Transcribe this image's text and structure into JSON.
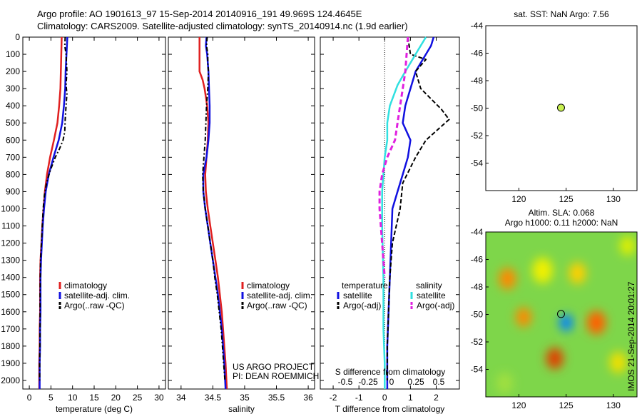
{
  "header": {
    "line1": "Argo profile: AO 1901613_97 15-Sep-2014 20140916_191 49.969S 124.4645E",
    "line2": "Climatology: CARS2009. Satellite-adjusted climatology: synTS_20140914.nc (1.9d earlier)"
  },
  "side_stamp": "IMOS 21-Sep-2014 20:01:27",
  "colors": {
    "clim": "#e02020",
    "sat": "#1010e0",
    "argo": "#000000",
    "sat_s": "#30e0e0",
    "argo_s": "#e020e0",
    "map_dot": "#c8f050"
  },
  "chart_data": [
    {
      "id": "temperature",
      "type": "line",
      "xlabel": "temperature (deg C)",
      "x_ticks": [
        0,
        5,
        10,
        15,
        20,
        25,
        30
      ],
      "xlim": [
        -1.5,
        31.5
      ],
      "ylim": [
        0,
        2050
      ],
      "y_ticks": [
        0,
        100,
        200,
        300,
        400,
        500,
        600,
        700,
        800,
        900,
        1000,
        1100,
        1200,
        1300,
        1400,
        1500,
        1600,
        1700,
        1800,
        1900,
        2000
      ],
      "legend": [
        "climatology",
        "satellite-adj. clim.",
        "Argo(..raw -QC)"
      ],
      "series": [
        {
          "name": "climatology",
          "color": "clim",
          "dash": "",
          "width": 2.5,
          "points": [
            [
              7.5,
              0
            ],
            [
              7.4,
              100
            ],
            [
              7.3,
              200
            ],
            [
              7.2,
              300
            ],
            [
              6.9,
              400
            ],
            [
              6.5,
              500
            ],
            [
              5.7,
              600
            ],
            [
              4.8,
              700
            ],
            [
              4.1,
              800
            ],
            [
              3.6,
              900
            ],
            [
              3.3,
              1000
            ],
            [
              3.0,
              1100
            ],
            [
              2.8,
              1200
            ],
            [
              2.6,
              1300
            ],
            [
              2.5,
              1400
            ],
            [
              2.5,
              1500
            ],
            [
              2.5,
              1600
            ],
            [
              2.4,
              1700
            ],
            [
              2.4,
              1800
            ],
            [
              2.3,
              1900
            ],
            [
              2.3,
              2050
            ]
          ]
        },
        {
          "name": "satellite-adj. clim.",
          "color": "sat",
          "dash": "",
          "width": 2.5,
          "points": [
            [
              8.8,
              0
            ],
            [
              8.6,
              100
            ],
            [
              8.4,
              200
            ],
            [
              8.3,
              300
            ],
            [
              8.0,
              400
            ],
            [
              7.6,
              500
            ],
            [
              6.8,
              600
            ],
            [
              5.6,
              700
            ],
            [
              4.5,
              800
            ],
            [
              3.8,
              900
            ],
            [
              3.4,
              1000
            ],
            [
              3.1,
              1100
            ],
            [
              2.9,
              1200
            ],
            [
              2.7,
              1300
            ],
            [
              2.6,
              1400
            ],
            [
              2.6,
              1500
            ],
            [
              2.6,
              1600
            ],
            [
              2.5,
              1700
            ],
            [
              2.5,
              1800
            ],
            [
              2.4,
              1900
            ],
            [
              2.4,
              2050
            ]
          ]
        },
        {
          "name": "Argo(..raw -QC)",
          "color": "argo",
          "dash": "6,3,2,3",
          "width": 2,
          "points": [
            [
              8.3,
              0
            ],
            [
              8.2,
              50
            ],
            [
              8.5,
              100
            ],
            [
              8.7,
              200
            ],
            [
              8.5,
              280
            ],
            [
              8.7,
              330
            ],
            [
              8.5,
              400
            ],
            [
              8.3,
              480
            ],
            [
              8.2,
              550
            ],
            [
              7.8,
              600
            ],
            [
              7.0,
              650
            ],
            [
              6.0,
              700
            ],
            [
              4.8,
              780
            ],
            [
              4.0,
              850
            ],
            [
              3.5,
              920
            ],
            [
              3.2,
              1000
            ],
            [
              3.0,
              1100
            ],
            [
              2.8,
              1200
            ],
            [
              2.6,
              1300
            ],
            [
              2.55,
              1400
            ],
            [
              2.5,
              1500
            ],
            [
              2.5,
              1600
            ],
            [
              2.5,
              1700
            ],
            [
              2.45,
              1800
            ],
            [
              2.4,
              1900
            ],
            [
              2.4,
              2000
            ]
          ]
        }
      ]
    },
    {
      "id": "salinity",
      "type": "line",
      "xlabel": "salinity",
      "x_ticks": [
        34,
        34.5,
        35,
        35.5,
        36
      ],
      "xlim": [
        33.8,
        36.1
      ],
      "ylim": [
        0,
        2050
      ],
      "legend": [
        "climatology",
        "satellite-adj. clim.",
        "Argo(..raw -QC)"
      ],
      "credit": [
        "US ARGO PROJECT",
        "PI: DEAN ROEMMICH"
      ],
      "series": [
        {
          "name": "climatology",
          "color": "clim",
          "dash": "",
          "width": 2.5,
          "points": [
            [
              34.29,
              0
            ],
            [
              34.29,
              50
            ],
            [
              34.29,
              150
            ],
            [
              34.29,
              200
            ],
            [
              34.34,
              250
            ],
            [
              34.37,
              300
            ],
            [
              34.41,
              400
            ],
            [
              34.43,
              500
            ],
            [
              34.42,
              600
            ],
            [
              34.4,
              700
            ],
            [
              34.38,
              800
            ],
            [
              34.39,
              900
            ],
            [
              34.42,
              1000
            ],
            [
              34.46,
              1100
            ],
            [
              34.5,
              1200
            ],
            [
              34.54,
              1300
            ],
            [
              34.58,
              1400
            ],
            [
              34.61,
              1500
            ],
            [
              34.64,
              1600
            ],
            [
              34.66,
              1700
            ],
            [
              34.68,
              1800
            ],
            [
              34.7,
              1900
            ],
            [
              34.72,
              2050
            ]
          ]
        },
        {
          "name": "satellite-adj. clim.",
          "color": "sat",
          "dash": "",
          "width": 2.5,
          "points": [
            [
              34.4,
              0
            ],
            [
              34.39,
              50
            ],
            [
              34.41,
              100
            ],
            [
              34.43,
              200
            ],
            [
              34.44,
              300
            ],
            [
              34.45,
              400
            ],
            [
              34.45,
              500
            ],
            [
              34.43,
              600
            ],
            [
              34.4,
              700
            ],
            [
              34.35,
              800
            ],
            [
              34.35,
              900
            ],
            [
              34.38,
              1000
            ],
            [
              34.42,
              1100
            ],
            [
              34.46,
              1200
            ],
            [
              34.5,
              1300
            ],
            [
              34.54,
              1400
            ],
            [
              34.58,
              1500
            ],
            [
              34.61,
              1600
            ],
            [
              34.64,
              1700
            ],
            [
              34.66,
              1800
            ],
            [
              34.68,
              1900
            ],
            [
              34.7,
              2050
            ]
          ]
        },
        {
          "name": "Argo(..raw -QC)",
          "color": "argo",
          "dash": "6,3,2,3",
          "width": 2,
          "points": [
            [
              34.41,
              0
            ],
            [
              34.4,
              50
            ],
            [
              34.42,
              100
            ],
            [
              34.42,
              150
            ],
            [
              34.43,
              200
            ],
            [
              34.42,
              300
            ],
            [
              34.4,
              400
            ],
            [
              34.39,
              500
            ],
            [
              34.38,
              600
            ],
            [
              34.36,
              700
            ],
            [
              34.34,
              800
            ],
            [
              34.35,
              900
            ],
            [
              34.38,
              1000
            ],
            [
              34.42,
              1100
            ],
            [
              34.46,
              1200
            ],
            [
              34.5,
              1300
            ],
            [
              34.53,
              1400
            ],
            [
              34.57,
              1500
            ],
            [
              34.6,
              1600
            ],
            [
              34.63,
              1700
            ],
            [
              34.65,
              1800
            ],
            [
              34.67,
              1900
            ],
            [
              34.69,
              2000
            ]
          ]
        }
      ]
    },
    {
      "id": "difference",
      "type": "line",
      "xlabel": "T difference from climatology",
      "xlabel_top": "S difference from climatology",
      "x_ticks": [
        -2,
        -1,
        0,
        1,
        2
      ],
      "s_ticks": [
        "-0.5",
        "-0.25",
        "0",
        "0.25",
        "0.5"
      ],
      "xlim": [
        -2.5,
        2.9
      ],
      "ylim": [
        0,
        2050
      ],
      "legend_titles": [
        "temperature",
        "salinity"
      ],
      "legend": [
        "satellite",
        "Argo(-adj)",
        "satellite",
        "Argo(-adj)"
      ],
      "series": [
        {
          "name": "satellite",
          "color": "sat",
          "dash": "",
          "width": 2.5,
          "points": [
            [
              1.9,
              0
            ],
            [
              1.8,
              50
            ],
            [
              1.6,
              100
            ],
            [
              1.4,
              150
            ],
            [
              1.2,
              200
            ],
            [
              1.0,
              300
            ],
            [
              0.8,
              400
            ],
            [
              0.7,
              500
            ],
            [
              1.0,
              600
            ],
            [
              0.9,
              700
            ],
            [
              0.7,
              800
            ],
            [
              0.5,
              900
            ],
            [
              0.3,
              1000
            ],
            [
              0.25,
              1200
            ],
            [
              0.2,
              1400
            ],
            [
              0.15,
              1600
            ],
            [
              0.1,
              1800
            ],
            [
              0.1,
              2050
            ]
          ]
        },
        {
          "name": "Argo(-adj)",
          "color": "argo",
          "dash": "6,3",
          "width": 2,
          "points": [
            [
              0.9,
              0
            ],
            [
              1.0,
              100
            ],
            [
              1.6,
              130
            ],
            [
              1.2,
              200
            ],
            [
              1.4,
              300
            ],
            [
              2.2,
              420
            ],
            [
              2.5,
              480
            ],
            [
              1.6,
              600
            ],
            [
              1.2,
              700
            ],
            [
              0.7,
              850
            ],
            [
              0.6,
              1000
            ],
            [
              0.3,
              1200
            ],
            [
              0.2,
              1400
            ],
            [
              0.15,
              1600
            ],
            [
              0.1,
              1800
            ],
            [
              0.1,
              2000
            ]
          ]
        },
        {
          "name": "satellite",
          "color": "sat_s",
          "dash": "",
          "width": 2.5,
          "points": [
            [
              1.6,
              0
            ],
            [
              1.4,
              50
            ],
            [
              1.2,
              100
            ],
            [
              1.0,
              150
            ],
            [
              0.8,
              200
            ],
            [
              0.5,
              280
            ],
            [
              0.2,
              400
            ],
            [
              0.1,
              500
            ],
            [
              0.1,
              600
            ],
            [
              0.0,
              700
            ],
            [
              -0.1,
              900
            ],
            [
              -0.1,
              1100
            ],
            [
              -0.05,
              1400
            ],
            [
              -0.05,
              1700
            ],
            [
              0.0,
              1900
            ],
            [
              0.0,
              2050
            ]
          ]
        },
        {
          "name": "Argo(-adj)",
          "color": "argo_s",
          "dash": "7,4",
          "width": 3,
          "points": [
            [
              0.9,
              0
            ],
            [
              0.85,
              100
            ],
            [
              0.8,
              200
            ],
            [
              0.7,
              300
            ],
            [
              0.6,
              400
            ],
            [
              0.5,
              500
            ],
            [
              0.4,
              600
            ],
            [
              0.1,
              700
            ],
            [
              -0.1,
              800
            ],
            [
              -0.2,
              900
            ],
            [
              -0.2,
              1000
            ],
            [
              -0.1,
              1200
            ],
            [
              0.0,
              1400
            ]
          ]
        }
      ]
    }
  ],
  "map_top": {
    "title": "sat. SST: NaN Argo: 7.56",
    "x_ticks": [
      120,
      125,
      130
    ],
    "y_ticks": [
      -44,
      -46,
      -48,
      -50,
      -52,
      -54
    ],
    "xlim": [
      116.5,
      132.5
    ],
    "ylim": [
      -56,
      -44
    ],
    "point": [
      124.46,
      -49.97
    ]
  },
  "map_bottom": {
    "title1": "Altim. SLA: 0.068",
    "title2": "Argo h1000: 0.11 h2000: NaN",
    "x_ticks": [
      120,
      125,
      130
    ],
    "y_ticks": [
      -44,
      -46,
      -48,
      -50,
      -52,
      -54
    ],
    "xlim": [
      116.5,
      132.5
    ],
    "ylim": [
      -56,
      -44
    ],
    "point": [
      124.46,
      -49.97
    ],
    "blobs": [
      {
        "lon": 118.8,
        "lat": -47.4,
        "color": "#ff8800",
        "r": 1.0
      },
      {
        "lon": 120.5,
        "lat": -50.2,
        "color": "#ff8800",
        "r": 0.9
      },
      {
        "lon": 123.8,
        "lat": -53.2,
        "color": "#e04000",
        "r": 1.0
      },
      {
        "lon": 128.2,
        "lat": -50.6,
        "color": "#ff6000",
        "r": 1.1
      },
      {
        "lon": 126.2,
        "lat": -47.0,
        "color": "#ffd000",
        "r": 1.0
      },
      {
        "lon": 125.0,
        "lat": -50.6,
        "color": "#0080ff",
        "r": 0.8
      },
      {
        "lon": 122.5,
        "lat": -46.8,
        "color": "#f0f000",
        "r": 1.2
      },
      {
        "lon": 130.5,
        "lat": -53.5,
        "color": "#f0e000",
        "r": 1.0
      },
      {
        "lon": 118.5,
        "lat": -55.0,
        "color": "#a0e040",
        "r": 1.0
      },
      {
        "lon": 131.5,
        "lat": -45.0,
        "color": "#e0f000",
        "r": 0.9
      }
    ]
  }
}
